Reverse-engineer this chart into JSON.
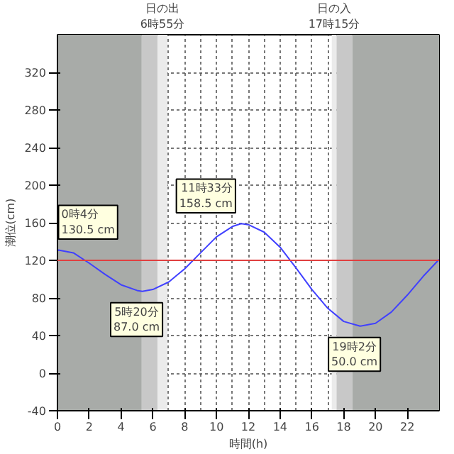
{
  "chart_data": {
    "type": "line",
    "xlabel": "時間(h)",
    "ylabel": "潮位(cm)",
    "x": [
      0,
      0.067,
      1,
      2,
      3,
      4,
      5,
      5.333,
      6,
      7,
      8,
      9,
      10,
      11,
      11.55,
      12,
      13,
      14,
      15,
      16,
      17,
      18,
      19.033,
      20,
      21,
      22,
      23,
      24
    ],
    "series": [
      {
        "color": "#4040ff",
        "values": [
          130,
          131,
          128,
          117,
          105,
          94,
          88,
          87,
          89,
          97,
          111,
          128,
          145,
          156,
          159,
          158,
          150,
          134,
          112,
          89,
          69,
          55,
          50,
          53,
          65,
          83,
          103,
          121
        ]
      }
    ],
    "xlim": [
      0,
      24
    ],
    "ylim": [
      -40,
      360
    ],
    "xticks": [
      0,
      2,
      4,
      6,
      8,
      10,
      12,
      14,
      16,
      18,
      20,
      22
    ],
    "yticks": [
      -40,
      0,
      40,
      80,
      120,
      160,
      200,
      240,
      280,
      320
    ],
    "grid": true,
    "marker": "none",
    "line_style": "solid",
    "ref_lines": [
      {
        "axis": "y",
        "value": 120,
        "color": "#e04040"
      }
    ],
    "bands": [
      {
        "axis": "x",
        "from": 0,
        "to": 5.3,
        "color": "#a8aba8"
      },
      {
        "axis": "x",
        "from": 5.3,
        "to": 6.3,
        "color": "#c8c8c8"
      },
      {
        "axis": "x",
        "from": 6.3,
        "to": 6.917,
        "color": "#ebebeb",
        "label": "日の出\n6時55分"
      },
      {
        "axis": "x",
        "from": 17.25,
        "to": 17.55,
        "color": "#ebebeb",
        "label": "日の入\n17時15分"
      },
      {
        "axis": "x",
        "from": 17.55,
        "to": 18.55,
        "color": "#c8c8c8"
      },
      {
        "axis": "x",
        "from": 18.55,
        "to": 24,
        "color": "#a8aba8"
      }
    ],
    "annotations": [
      {
        "text": "0時4分\n130.5 cm",
        "x": 0.067,
        "y": 130.5
      },
      {
        "text": "5時20分\n87.0 cm",
        "x": 5.333,
        "y": 87.0
      },
      {
        "text": "11時33分\n158.5 cm",
        "x": 11.55,
        "y": 158.5
      },
      {
        "text": "19時2分\n50.0 cm",
        "x": 19.033,
        "y": 50.0
      }
    ]
  }
}
